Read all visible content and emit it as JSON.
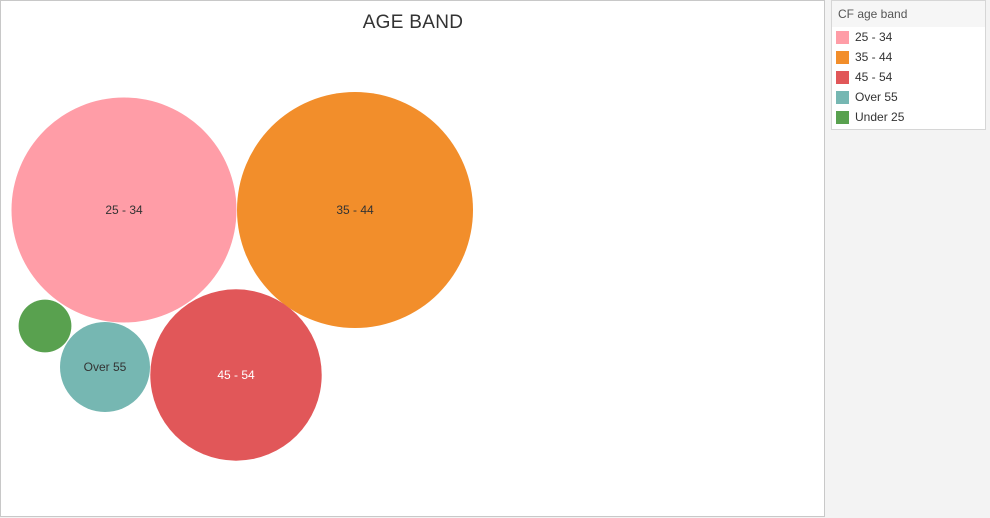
{
  "chart_data": {
    "type": "bubble",
    "title": "AGE BAND",
    "legend": {
      "title": "CF age band",
      "placement": "top-right",
      "entries": [
        {
          "label": "25 - 34",
          "color": "#ff9da7"
        },
        {
          "label": "35 - 44",
          "color": "#f28e2b"
        },
        {
          "label": "45 - 54",
          "color": "#e15759"
        },
        {
          "label": "Over 55",
          "color": "#76b7b2"
        },
        {
          "label": "Under 25",
          "color": "#59a14f"
        }
      ]
    },
    "bubbles": [
      {
        "category": "25 - 34",
        "label": "25 - 34",
        "relative_size": 1.0,
        "color": "#ff9da7",
        "label_color": "#333333"
      },
      {
        "category": "35 - 44",
        "label": "35 - 44",
        "relative_size": 1.1,
        "color": "#f28e2b",
        "label_color": "#333333"
      },
      {
        "category": "45 - 54",
        "label": "45 - 54",
        "relative_size": 0.58,
        "color": "#e15759",
        "label_color": "#ffffff"
      },
      {
        "category": "Over 55",
        "label": "Over 55",
        "relative_size": 0.16,
        "color": "#76b7b2",
        "label_color": "#333333"
      },
      {
        "category": "Under 25",
        "label": "",
        "relative_size": 0.055,
        "color": "#59a14f",
        "label_color": "#333333"
      }
    ]
  }
}
